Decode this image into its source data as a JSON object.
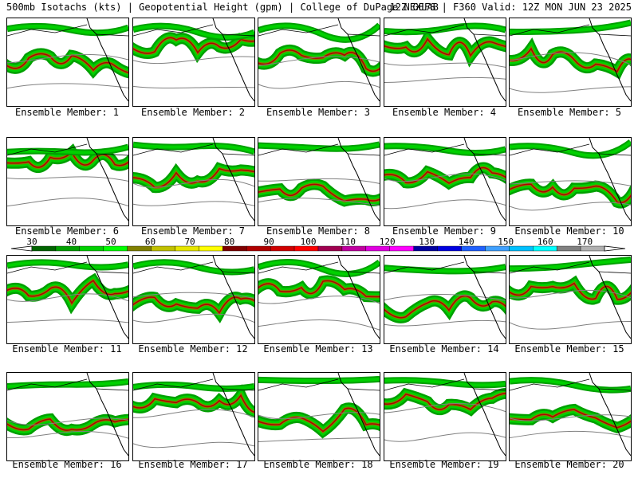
{
  "header": {
    "title": "500mb Isotachs (kts) | Geopotential Height (gpm) | College of DuPage NEXLAB",
    "run_info": "12Z GEFS | F360 Valid: 12Z MON JUN 23 2025"
  },
  "panels": [
    {
      "label": "Ensemble Member: 1"
    },
    {
      "label": "Ensemble Member: 2"
    },
    {
      "label": "Ensemble Member: 3"
    },
    {
      "label": "Ensemble Member: 4"
    },
    {
      "label": "Ensemble Member: 5"
    },
    {
      "label": "Ensemble Member: 6"
    },
    {
      "label": "Ensemble Member: 7"
    },
    {
      "label": "Ensemble Member: 8"
    },
    {
      "label": "Ensemble Member: 9"
    },
    {
      "label": "Ensemble Member: 10"
    },
    {
      "label": "Ensemble Member: 11"
    },
    {
      "label": "Ensemble Member: 12"
    },
    {
      "label": "Ensemble Member: 13"
    },
    {
      "label": "Ensemble Member: 14"
    },
    {
      "label": "Ensemble Member: 15"
    },
    {
      "label": "Ensemble Member: 16"
    },
    {
      "label": "Ensemble Member: 17"
    },
    {
      "label": "Ensemble Member: 18"
    },
    {
      "label": "Ensemble Member: 19"
    },
    {
      "label": "Ensemble Member: 20"
    }
  ],
  "colorbar": {
    "labels": [
      "30",
      "40",
      "50",
      "60",
      "70",
      "80",
      "90",
      "100",
      "110",
      "120",
      "130",
      "140",
      "150",
      "160",
      "170"
    ],
    "colors": [
      "#006400",
      "#00a000",
      "#00d000",
      "#00ff00",
      "#808000",
      "#c0c000",
      "#e6e600",
      "#ffff00",
      "#800000",
      "#b00000",
      "#d00000",
      "#ff0000",
      "#a00050",
      "#c000a0",
      "#e000e0",
      "#ff00ff",
      "#0000a0",
      "#0000e0",
      "#2060ff",
      "#40a0ff",
      "#00c0ff",
      "#00ffff",
      "#808080",
      "#b0b0b0"
    ]
  }
}
